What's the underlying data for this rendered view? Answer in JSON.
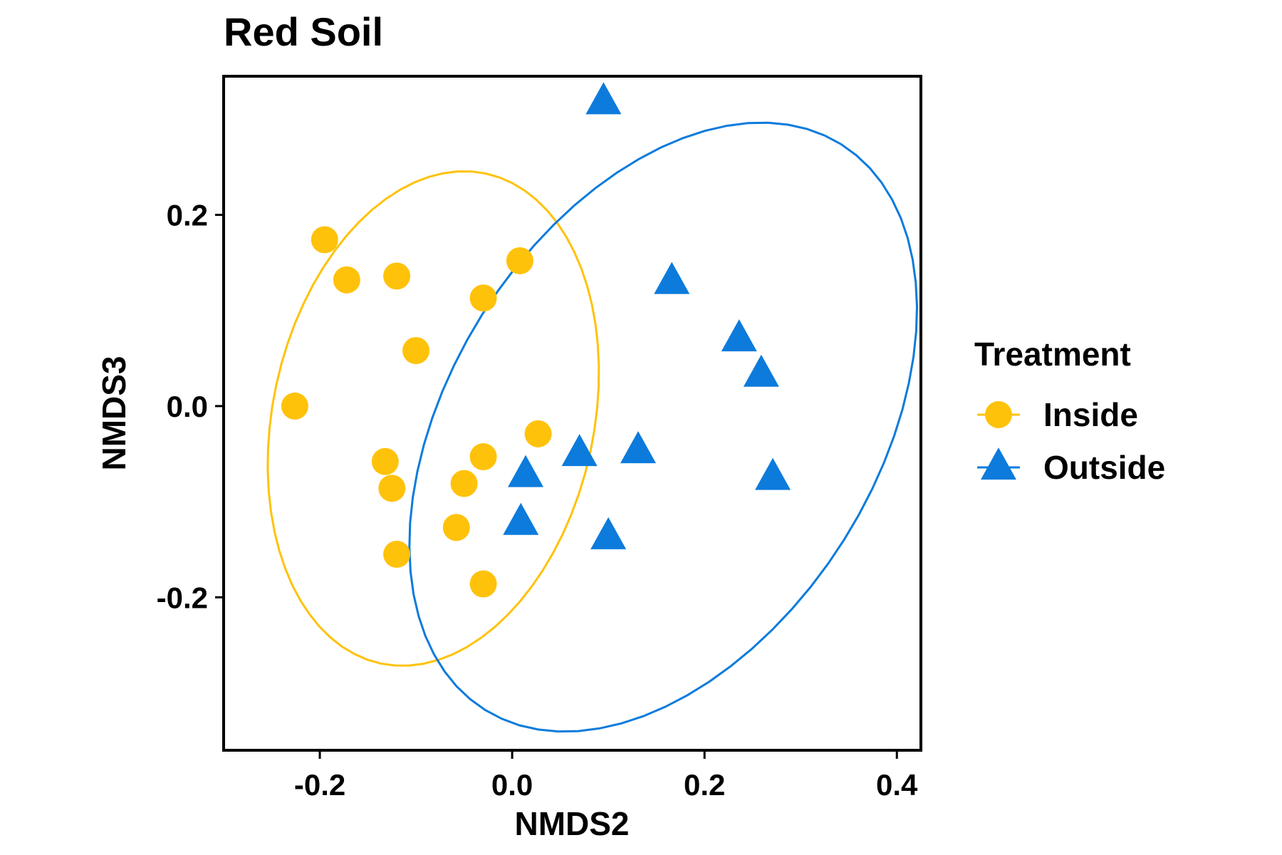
{
  "chart_data": {
    "type": "scatter",
    "title": "Red Soil",
    "xlabel": "NMDS2",
    "ylabel": "NMDS3",
    "xlim": [
      -0.3,
      0.425
    ],
    "ylim": [
      -0.36,
      0.345
    ],
    "xticks": [
      -0.2,
      0.0,
      0.2,
      0.4
    ],
    "xtick_labels": [
      "-0.2",
      "0.0",
      "0.2",
      "0.4"
    ],
    "yticks": [
      -0.2,
      0.0,
      0.2
    ],
    "ytick_labels": [
      "-0.2",
      "0.0",
      "0.2"
    ],
    "grid": false,
    "legend": {
      "title": "Treatment",
      "placement": "right"
    },
    "series": [
      {
        "name": "Inside",
        "marker": "circle",
        "color": "#FFC20A",
        "points": [
          {
            "x": -0.195,
            "y": 0.174
          },
          {
            "x": -0.172,
            "y": 0.132
          },
          {
            "x": -0.12,
            "y": 0.136
          },
          {
            "x": 0.008,
            "y": 0.152
          },
          {
            "x": -0.03,
            "y": 0.113
          },
          {
            "x": -0.1,
            "y": 0.058
          },
          {
            "x": -0.226,
            "y": 0.0
          },
          {
            "x": 0.027,
            "y": -0.029
          },
          {
            "x": -0.03,
            "y": -0.053
          },
          {
            "x": -0.132,
            "y": -0.058
          },
          {
            "x": -0.05,
            "y": -0.081
          },
          {
            "x": -0.125,
            "y": -0.086
          },
          {
            "x": -0.058,
            "y": -0.127
          },
          {
            "x": -0.12,
            "y": -0.155
          },
          {
            "x": -0.03,
            "y": -0.186
          }
        ],
        "ellipse": {
          "cx": -0.082,
          "cy": -0.013,
          "rx": 0.262,
          "ry": 0.167,
          "angle_deg": 78
        }
      },
      {
        "name": "Outside",
        "marker": "triangle",
        "color": "#0C7BDC",
        "points": [
          {
            "x": 0.095,
            "y": 0.318
          },
          {
            "x": 0.166,
            "y": 0.13
          },
          {
            "x": 0.236,
            "y": 0.07
          },
          {
            "x": 0.259,
            "y": 0.033
          },
          {
            "x": 0.07,
            "y": -0.05
          },
          {
            "x": 0.131,
            "y": -0.047
          },
          {
            "x": 0.014,
            "y": -0.072
          },
          {
            "x": 0.271,
            "y": -0.075
          },
          {
            "x": 0.009,
            "y": -0.122
          },
          {
            "x": 0.1,
            "y": -0.137
          }
        ],
        "ellipse": {
          "cx": 0.157,
          "cy": -0.022,
          "rx": 0.349,
          "ry": 0.222,
          "angle_deg": 58
        }
      }
    ]
  }
}
